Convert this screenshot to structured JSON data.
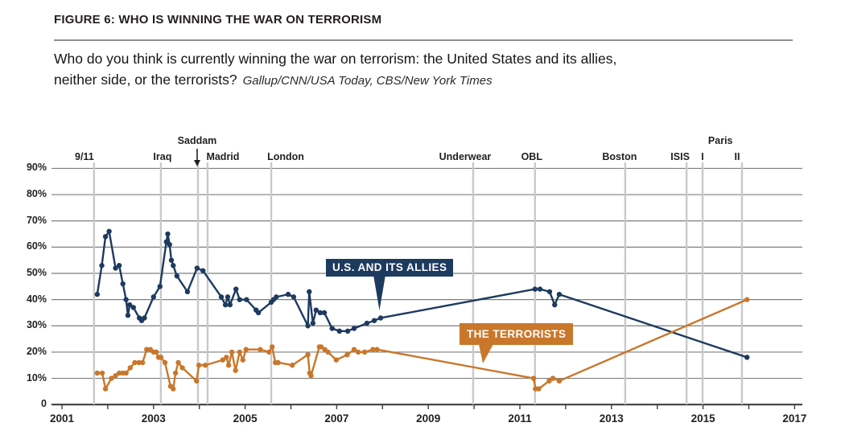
{
  "header": {
    "figure_label": "FIGURE 6: WHO IS WINNING THE WAR ON TERRORISM",
    "question_line1": "Who do you think is currently winning the war on terrorism: the United States and its allies,",
    "question_line2": "neither side, or the terrorists?",
    "source": "Gallup/CNN/USA Today, CBS/New York Times"
  },
  "chart_data": {
    "type": "line",
    "title": "FIGURE 6: WHO IS WINNING THE WAR ON TERRORISM",
    "xlabel": "",
    "ylabel": "percent",
    "x_range": [
      2001,
      2017
    ],
    "x_tick_labels": [
      "2001",
      "2003",
      "2005",
      "2007",
      "2009",
      "2011",
      "2013",
      "2015",
      "2017"
    ],
    "x_tick_values": [
      2001,
      2003,
      2005,
      2007,
      2009,
      2011,
      2013,
      2015,
      2017
    ],
    "x_minor_tick_every_years": 1,
    "y_tick_labels": [
      "90%",
      "80%",
      "70%",
      "60%",
      "50%",
      "40%",
      "30%",
      "20%",
      "10%",
      "0"
    ],
    "y_tick_values": [
      90,
      80,
      70,
      60,
      50,
      40,
      30,
      20,
      10,
      0
    ],
    "ylim": [
      0,
      90
    ],
    "grid": true,
    "legend_position": "inline-callouts",
    "colors": {
      "us": "#1d3a5f",
      "terrorists": "#c9772b",
      "grid": "#7e7e7e",
      "event_line": "#c9c9c9",
      "axis": "#3f3f3f",
      "text": "#231f20"
    },
    "events": [
      {
        "label": "9/11",
        "year": 2001.7,
        "row": 1,
        "dx": -12
      },
      {
        "label": "Iraq",
        "year": 2003.16,
        "row": 1,
        "dx": 2
      },
      {
        "label": "Saddam",
        "year": 2003.97,
        "row": 2,
        "dx": -1,
        "arrow": true
      },
      {
        "label": "Madrid",
        "year": 2004.18,
        "row": 1,
        "dx": 19
      },
      {
        "label": "London",
        "year": 2005.57,
        "row": 1,
        "dx": 18
      },
      {
        "label": "Underwear",
        "year": 2009.98,
        "row": 1,
        "dx": -10
      },
      {
        "label": "OBL",
        "year": 2011.33,
        "row": 1,
        "dx": -4
      },
      {
        "label": "Boston",
        "year": 2013.3,
        "row": 1,
        "dx": -7
      },
      {
        "label": "ISIS",
        "year": 2014.64,
        "row": 1,
        "dx": -8
      },
      {
        "label": "I",
        "year": 2014.99,
        "row": 1,
        "dx": 0
      },
      {
        "label": "Paris",
        "year": 2015.38,
        "row": 2,
        "dx": 0,
        "no_line": true
      },
      {
        "label": "II",
        "year": 2015.85,
        "row": 1,
        "dx": -6
      }
    ],
    "series": [
      {
        "name": "U.S. AND ITS ALLIES",
        "key": "us",
        "points": [
          [
            2001.77,
            42
          ],
          [
            2001.87,
            53
          ],
          [
            2001.95,
            64
          ],
          [
            2002.03,
            66
          ],
          [
            2002.17,
            52
          ],
          [
            2002.25,
            53
          ],
          [
            2002.33,
            46
          ],
          [
            2002.4,
            40
          ],
          [
            2002.44,
            34
          ],
          [
            2002.48,
            38
          ],
          [
            2002.56,
            37
          ],
          [
            2002.69,
            33
          ],
          [
            2002.74,
            32
          ],
          [
            2002.8,
            33
          ],
          [
            2003.0,
            41
          ],
          [
            2003.14,
            45
          ],
          [
            2003.28,
            62
          ],
          [
            2003.31,
            65
          ],
          [
            2003.35,
            61
          ],
          [
            2003.39,
            55
          ],
          [
            2003.43,
            53
          ],
          [
            2003.51,
            49
          ],
          [
            2003.74,
            43
          ],
          [
            2003.95,
            52
          ],
          [
            2004.08,
            51
          ],
          [
            2004.48,
            41
          ],
          [
            2004.57,
            38
          ],
          [
            2004.62,
            41
          ],
          [
            2004.67,
            38
          ],
          [
            2004.8,
            44
          ],
          [
            2004.88,
            40
          ],
          [
            2005.03,
            40
          ],
          [
            2005.24,
            36
          ],
          [
            2005.29,
            35
          ],
          [
            2005.57,
            39
          ],
          [
            2005.62,
            40
          ],
          [
            2005.68,
            41
          ],
          [
            2005.94,
            42
          ],
          [
            2006.06,
            41
          ],
          [
            2006.37,
            30
          ],
          [
            2006.4,
            43
          ],
          [
            2006.48,
            31
          ],
          [
            2006.55,
            36
          ],
          [
            2006.64,
            35
          ],
          [
            2006.73,
            35
          ],
          [
            2006.9,
            29
          ],
          [
            2007.06,
            28
          ],
          [
            2007.24,
            28
          ],
          [
            2007.38,
            29
          ],
          [
            2007.66,
            31
          ],
          [
            2007.82,
            32
          ],
          [
            2007.96,
            33
          ],
          [
            2011.33,
            44
          ],
          [
            2011.44,
            44
          ],
          [
            2011.65,
            43
          ],
          [
            2011.76,
            38
          ],
          [
            2011.86,
            42
          ],
          [
            2015.96,
            18
          ]
        ]
      },
      {
        "name": "THE TERRORISTS",
        "key": "terrorists",
        "points": [
          [
            2001.77,
            12
          ],
          [
            2001.88,
            12
          ],
          [
            2001.95,
            6
          ],
          [
            2002.08,
            10
          ],
          [
            2002.17,
            11
          ],
          [
            2002.25,
            12
          ],
          [
            2002.33,
            12
          ],
          [
            2002.4,
            12
          ],
          [
            2002.49,
            14
          ],
          [
            2002.59,
            16
          ],
          [
            2002.68,
            16
          ],
          [
            2002.76,
            16
          ],
          [
            2002.85,
            21
          ],
          [
            2002.93,
            21
          ],
          [
            2003.0,
            20
          ],
          [
            2003.06,
            20
          ],
          [
            2003.11,
            18
          ],
          [
            2003.16,
            18
          ],
          [
            2003.25,
            16
          ],
          [
            2003.37,
            7
          ],
          [
            2003.43,
            6
          ],
          [
            2003.48,
            12
          ],
          [
            2003.54,
            16
          ],
          [
            2003.63,
            14
          ],
          [
            2003.94,
            9
          ],
          [
            2003.99,
            15
          ],
          [
            2004.13,
            15
          ],
          [
            2004.51,
            17
          ],
          [
            2004.59,
            18
          ],
          [
            2004.64,
            15
          ],
          [
            2004.71,
            20
          ],
          [
            2004.79,
            13
          ],
          [
            2004.88,
            20
          ],
          [
            2004.95,
            17
          ],
          [
            2005.02,
            21
          ],
          [
            2005.33,
            21
          ],
          [
            2005.52,
            20
          ],
          [
            2005.59,
            22
          ],
          [
            2005.66,
            16
          ],
          [
            2005.72,
            16
          ],
          [
            2006.03,
            15
          ],
          [
            2006.37,
            19
          ],
          [
            2006.41,
            12
          ],
          [
            2006.44,
            11
          ],
          [
            2006.62,
            22
          ],
          [
            2006.66,
            22
          ],
          [
            2006.74,
            21
          ],
          [
            2006.81,
            20
          ],
          [
            2006.99,
            17
          ],
          [
            2007.23,
            19
          ],
          [
            2007.38,
            21
          ],
          [
            2007.47,
            20
          ],
          [
            2007.61,
            20
          ],
          [
            2007.79,
            21
          ],
          [
            2007.88,
            21
          ],
          [
            2011.3,
            10
          ],
          [
            2011.34,
            6
          ],
          [
            2011.41,
            6
          ],
          [
            2011.64,
            9
          ],
          [
            2011.72,
            10
          ],
          [
            2011.86,
            9
          ],
          [
            2015.96,
            40
          ]
        ]
      }
    ]
  }
}
